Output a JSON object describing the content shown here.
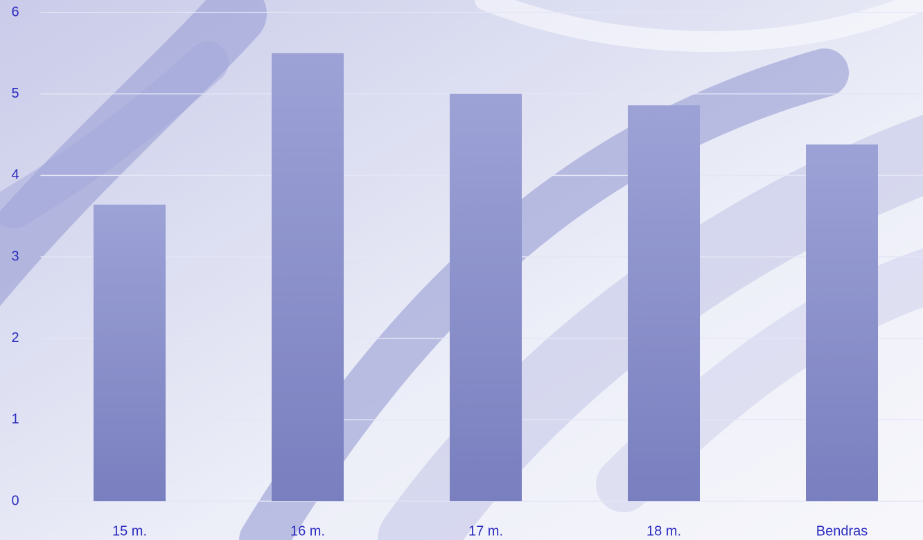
{
  "chart_data": {
    "type": "bar",
    "categories": [
      "15 m.",
      "16 m.",
      "17 m.",
      "18 m.",
      "Bendras"
    ],
    "values": [
      3.64,
      5.5,
      5.0,
      4.86,
      4.38
    ],
    "color": "#8e93cf",
    "ylim": [
      0,
      6
    ],
    "yticks": [
      0,
      1,
      2,
      3,
      4,
      5,
      6
    ],
    "grid": true
  }
}
